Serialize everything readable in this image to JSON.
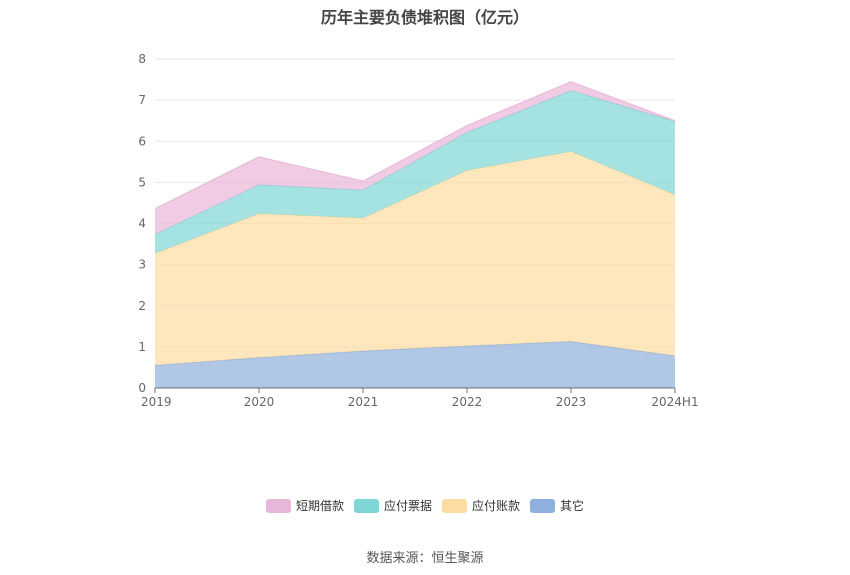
{
  "source": "数据来源：恒生聚源",
  "chart_data": {
    "type": "area",
    "stacked": true,
    "title": "历年主要负债堆积图（亿元）",
    "categories": [
      "2019",
      "2020",
      "2021",
      "2022",
      "2023",
      "2024H1"
    ],
    "ylim": [
      0,
      8
    ],
    "yticks": [
      "0",
      "1",
      "2",
      "3",
      "4",
      "5",
      "6",
      "7",
      "8"
    ],
    "grid": true,
    "legend_position": "bottom",
    "series": [
      {
        "name": "其它",
        "values": [
          0.55,
          0.74,
          0.9,
          1.02,
          1.13,
          0.78
        ],
        "color": "#8fb0dc"
      },
      {
        "name": "应付账款",
        "values": [
          2.72,
          3.5,
          3.23,
          4.27,
          4.62,
          3.92
        ],
        "color": "#fedba1"
      },
      {
        "name": "应付票据",
        "values": [
          0.46,
          0.7,
          0.68,
          0.92,
          1.48,
          1.78
        ],
        "color": "#7fd6d6"
      },
      {
        "name": "短期借款",
        "values": [
          0.63,
          0.68,
          0.22,
          0.17,
          0.22,
          0.02
        ],
        "color": "#e8b6d8"
      }
    ],
    "legend_order": [
      "短期借款",
      "应付票据",
      "应付账款",
      "其它"
    ]
  }
}
